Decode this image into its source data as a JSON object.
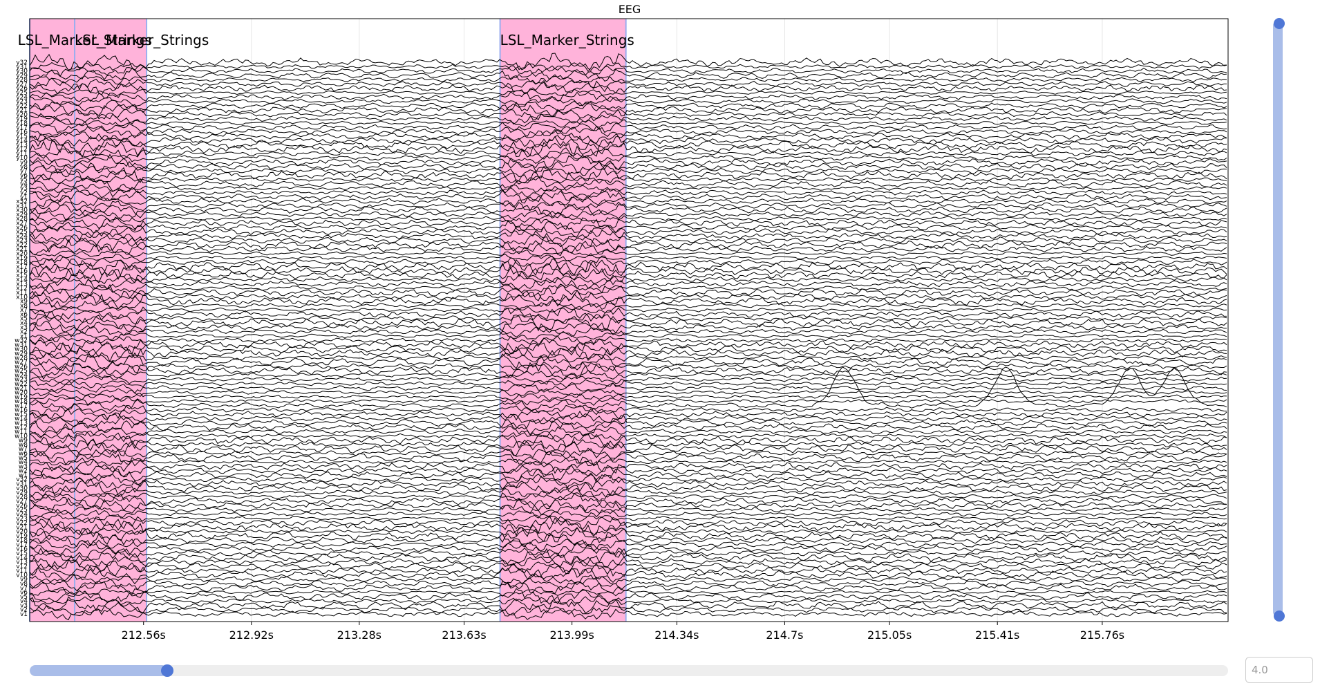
{
  "chart_data": {
    "type": "line",
    "title": "EEG",
    "x_unit": "s",
    "xlim": [
      212.18,
      216.18
    ],
    "x_ticks": [
      "212.56s",
      "212.92s",
      "213.28s",
      "213.63s",
      "213.99s",
      "214.34s",
      "214.7s",
      "215.05s",
      "215.41s",
      "215.76s"
    ],
    "x_tick_values": [
      212.56,
      212.92,
      213.28,
      213.63,
      213.99,
      214.34,
      214.7,
      215.05,
      215.41,
      215.76
    ],
    "grid": true,
    "channels": [
      "y32",
      "y31",
      "y30",
      "y29",
      "y28",
      "y27",
      "y26",
      "y25",
      "y24",
      "y23",
      "y22",
      "y21",
      "y20",
      "y19",
      "y18",
      "y17",
      "y16",
      "y15",
      "y14",
      "y13",
      "y12",
      "y11",
      "y10",
      "y9",
      "y8",
      "y7",
      "y6",
      "y5",
      "y4",
      "y3",
      "y2",
      "y1",
      "x32",
      "x31",
      "x30",
      "x29",
      "x28",
      "x27",
      "x26",
      "x25",
      "x24",
      "x23",
      "x22",
      "x21",
      "x20",
      "x19",
      "x18",
      "x17",
      "x16",
      "x15",
      "x14",
      "x13",
      "x12",
      "x11",
      "x10",
      "x9",
      "x8",
      "x7",
      "x6",
      "x5",
      "x4",
      "x3",
      "x2",
      "x1",
      "w32",
      "w31",
      "w30",
      "w29",
      "w28",
      "w27",
      "w26",
      "w25",
      "w24",
      "w23",
      "w22",
      "w21",
      "w20",
      "w19",
      "w18",
      "w17",
      "w16",
      "w15",
      "w14",
      "w13",
      "w12",
      "w11",
      "w10",
      "w9",
      "w8",
      "w7",
      "w6",
      "w5",
      "w4",
      "w3",
      "w2",
      "w1",
      "v32",
      "v31",
      "v30",
      "v29",
      "v28",
      "v27",
      "v26",
      "v25",
      "v24",
      "v23",
      "v22",
      "v21",
      "v20",
      "v19",
      "v18",
      "v17",
      "v16",
      "v15",
      "v14",
      "v13",
      "v12",
      "v11",
      "v10",
      "v9",
      "v8",
      "v7",
      "v6",
      "v5",
      "v4",
      "v3",
      "v2",
      "v1"
    ],
    "annotations": [
      {
        "label": "LSL_Marker_Strings",
        "start": 212.33,
        "end": 212.57,
        "color": "#ffb3da"
      },
      {
        "label": "LSL_Marker_Strings",
        "start": 212.14,
        "end": 212.33,
        "color": "#ffb3da"
      },
      {
        "label": "LSL_Marker_Strings",
        "start": 213.75,
        "end": 214.17,
        "color": "#ffb3da"
      }
    ],
    "events": [
      {
        "time": 214.9,
        "channel": "w17",
        "shape": "bump"
      },
      {
        "time": 215.44,
        "channel": "w17",
        "shape": "bump"
      },
      {
        "time": 215.85,
        "channel": "w17",
        "shape": "bump"
      },
      {
        "time": 216.0,
        "channel": "w17",
        "shape": "bump"
      }
    ]
  },
  "controls": {
    "duration_value": "4.0",
    "vertical_scroll": {
      "position": 0.0
    },
    "horizontal_scroll": {
      "position": 0.115
    }
  },
  "colors": {
    "trace": "#000000",
    "annotation_fill": "#ffb3da",
    "annotation_edge": "#9aaeef",
    "scroll_track": "#a9bde9",
    "scroll_handle": "#4f77d6"
  }
}
